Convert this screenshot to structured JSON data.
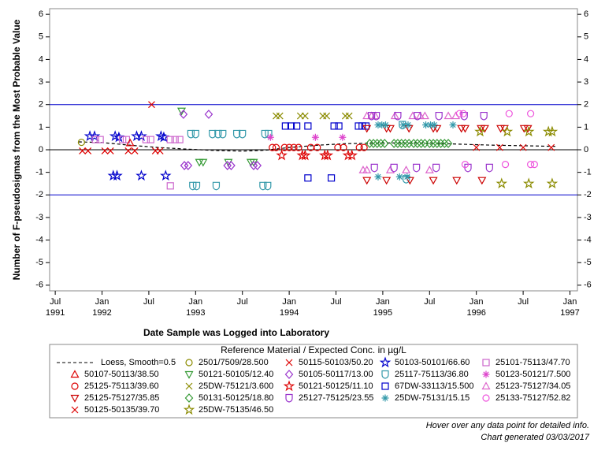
{
  "chart_data": {
    "type": "scatter",
    "x_label": "Date Sample was Logged into Laboratory",
    "y_label": "Number of F-pseudosigmas from the Most Probable Value",
    "xlim": [
      1991.44,
      1997.08
    ],
    "ylim": [
      -6.25,
      6.25
    ],
    "xticks": [
      {
        "value": 1991.5,
        "label": "Jul\n1991"
      },
      {
        "value": 1992,
        "label": "Jan\n1992"
      },
      {
        "value": 1992.5,
        "label": "Jul"
      },
      {
        "value": 1993,
        "label": "Jan\n1993"
      },
      {
        "value": 1993.5,
        "label": "Jul"
      },
      {
        "value": 1994,
        "label": "Jan\n1994"
      },
      {
        "value": 1994.5,
        "label": "Jul"
      },
      {
        "value": 1995,
        "label": "Jan\n1995"
      },
      {
        "value": 1995.5,
        "label": "Jul"
      },
      {
        "value": 1996,
        "label": "Jan\n1996"
      },
      {
        "value": 1996.5,
        "label": "Jul"
      },
      {
        "value": 1997,
        "label": "Jan\n1997"
      }
    ],
    "yticks": [
      -6,
      -5,
      -4,
      -3,
      -2,
      -1,
      0,
      1,
      2,
      3,
      4,
      5,
      6
    ],
    "reference_lines": [
      {
        "value": 2,
        "color": "#0000cc"
      },
      {
        "value": 0,
        "color": "#000000"
      },
      {
        "value": -2,
        "color": "#0000cc"
      }
    ],
    "legend_title": "Reference Material / Expected Conc. in µg/L",
    "loess": {
      "name": "Loess, Smooth=0.5",
      "color": "#000000",
      "x": [
        1991.75,
        1992.0,
        1992.3,
        1992.6,
        1992.9,
        1993.2,
        1993.5,
        1993.75,
        1994.0,
        1994.3,
        1994.6,
        1995.0,
        1995.4,
        1995.8,
        1996.2,
        1996.6,
        1996.85
      ],
      "values": [
        0.35,
        0.32,
        0.2,
        0.1,
        0.03,
        -0.03,
        -0.06,
        -0.02,
        0.1,
        0.2,
        0.27,
        0.3,
        0.3,
        0.25,
        0.2,
        0.17,
        0.15
      ]
    },
    "series": [
      {
        "name": "2501/7509/28.500",
        "marker": "circle",
        "color": "#8b8b00",
        "x": [
          1991.78
        ],
        "values": [
          0.33
        ]
      },
      {
        "name": "50115-50103/50.20",
        "marker": "x",
        "color": "#dd0000",
        "x": [
          1991.79,
          1991.85,
          1992.03,
          1992.09,
          1992.28,
          1992.35,
          1992.53,
          1992.57,
          1992.62
        ],
        "values": [
          -0.05,
          -0.05,
          -0.05,
          -0.05,
          -0.05,
          -0.05,
          2.0,
          -0.05,
          -0.05
        ]
      },
      {
        "name": "50103-50101/66.60",
        "marker": "star",
        "color": "#0000cc",
        "x": [
          1991.87,
          1991.92,
          1992.14,
          1992.18,
          1992.37,
          1992.42,
          1992.63,
          1992.66,
          1992.12,
          1992.16,
          1992.42,
          1992.68
        ],
        "values": [
          0.6,
          0.6,
          0.6,
          0.55,
          0.6,
          0.6,
          0.6,
          0.55,
          -1.15,
          -1.15,
          -1.15,
          -1.15
        ]
      },
      {
        "name": "25101-75113/47.70",
        "marker": "square",
        "color": "#cc66cc",
        "x": [
          1991.93,
          1991.98,
          1992.22,
          1992.26,
          1992.47,
          1992.52,
          1992.73,
          1992.78,
          1992.83,
          1992.73
        ],
        "values": [
          0.45,
          0.45,
          0.45,
          0.45,
          0.45,
          0.45,
          0.45,
          0.45,
          0.45,
          -1.6
        ]
      },
      {
        "name": "50107-50113/38.50",
        "marker": "triangle",
        "color": "#dd0000",
        "x": [
          1992.3
        ],
        "values": [
          0.3
        ]
      },
      {
        "name": "50121-50105/12.40",
        "marker": "triangle-down",
        "color": "#339933",
        "x": [
          1992.85,
          1993.04,
          1993.08,
          1993.35,
          1993.59,
          1993.62
        ],
        "values": [
          1.72,
          -0.55,
          -0.55,
          -0.55,
          -0.55,
          -0.55
        ]
      },
      {
        "name": "50105-50117/13.00",
        "marker": "diamond",
        "color": "#9933cc",
        "x": [
          1992.87,
          1993.14,
          1992.88,
          1992.92,
          1993.34,
          1993.38,
          1993.62,
          1993.66
        ],
        "values": [
          1.57,
          1.57,
          -0.7,
          -0.7,
          -0.7,
          -0.7,
          -0.7,
          -0.7
        ]
      },
      {
        "name": "25117-75113/36.80",
        "marker": "shield",
        "color": "#3399aa",
        "x": [
          1992.95,
          1993.0,
          1993.18,
          1993.24,
          1993.29,
          1993.44,
          1993.5,
          1993.74,
          1993.78,
          1992.97,
          1993.01,
          1993.22,
          1993.72,
          1993.77,
          1995.21,
          1995.25
        ],
        "values": [
          0.7,
          0.7,
          0.7,
          0.7,
          0.7,
          0.7,
          0.7,
          0.7,
          0.7,
          -1.6,
          -1.6,
          -1.6,
          -1.6,
          -1.6,
          1.1,
          -1.3
        ]
      },
      {
        "name": "50123-50121/7.500",
        "marker": "asterisk",
        "color": "#dd44cc",
        "x": [
          1993.8,
          1994.28,
          1994.57
        ],
        "values": [
          0.55,
          0.55,
          0.55
        ]
      },
      {
        "name": "25125-75113/39.60",
        "marker": "circle",
        "color": "#dd0000",
        "x": [
          1993.82,
          1993.86,
          1993.95,
          1994.0,
          1994.05,
          1994.1,
          1994.23,
          1994.3,
          1994.52,
          1994.58,
          1994.75,
          1994.8
        ],
        "values": [
          0.1,
          0.1,
          0.1,
          0.1,
          0.1,
          0.1,
          0.1,
          0.1,
          0.1,
          0.1,
          0.1,
          0.1
        ]
      },
      {
        "name": "25DW-75121/3.600",
        "marker": "x",
        "color": "#8b8b00",
        "x": [
          1993.86,
          1993.9,
          1994.12,
          1994.17,
          1994.36,
          1994.4,
          1994.6,
          1994.64
        ],
        "values": [
          1.5,
          1.5,
          1.5,
          1.5,
          1.5,
          1.5,
          1.5,
          1.5
        ]
      },
      {
        "name": "50121-50125/11.10",
        "marker": "star",
        "color": "#dd0000",
        "x": [
          1993.92,
          1994.14,
          1994.17,
          1994.38,
          1994.41,
          1994.63,
          1994.67
        ],
        "values": [
          -0.25,
          -0.25,
          -0.25,
          -0.25,
          -0.25,
          -0.25,
          -0.25
        ]
      },
      {
        "name": "67DW-33113/15.500",
        "marker": "square",
        "color": "#0000cc",
        "x": [
          1993.96,
          1994.02,
          1994.08,
          1994.2,
          1994.48,
          1994.53,
          1994.74,
          1994.78,
          1994.82,
          1994.2,
          1994.45
        ],
        "values": [
          1.05,
          1.05,
          1.05,
          1.05,
          1.05,
          1.05,
          1.05,
          1.05,
          1.05,
          -1.25,
          -1.25
        ]
      },
      {
        "name": "25123-75127/34.05",
        "marker": "triangle",
        "color": "#dd66cc",
        "x": [
          1994.83,
          1994.88,
          1994.92,
          1994.79,
          1994.83,
          1995.13,
          1995.32,
          1995.4,
          1995.45,
          1995.08,
          1995.25,
          1995.5,
          1995.7,
          1995.78
        ],
        "values": [
          1.5,
          1.5,
          1.5,
          -0.9,
          -0.9,
          1.5,
          1.5,
          1.5,
          1.5,
          -0.9,
          -0.9,
          -0.9,
          1.5,
          1.5
        ]
      },
      {
        "name": "25125-75127/35.85",
        "marker": "triangle-down",
        "color": "#cc0000",
        "x": [
          1994.83,
          1995.04,
          1995.08,
          1995.28,
          1995.54,
          1995.58,
          1995.84,
          1995.88,
          1996.05,
          1996.09,
          1996.26,
          1996.3,
          1996.51,
          1996.55,
          1994.83,
          1995.04,
          1995.29,
          1995.54,
          1995.79,
          1996.06
        ],
        "values": [
          0.95,
          0.95,
          0.95,
          0.95,
          0.95,
          0.95,
          0.95,
          0.95,
          0.95,
          0.95,
          0.95,
          0.95,
          0.95,
          0.95,
          -1.35,
          -1.35,
          -1.35,
          -1.35,
          -1.35,
          -1.35
        ]
      },
      {
        "name": "50131-50125/18.80",
        "marker": "diamond",
        "color": "#339933",
        "x": [
          1994.86,
          1994.9,
          1994.94,
          1994.98,
          1995.02,
          1995.12,
          1995.16,
          1995.2,
          1995.24,
          1995.28,
          1995.33,
          1995.37,
          1995.41,
          1995.45,
          1995.5,
          1995.54,
          1995.58,
          1995.62,
          1995.66,
          1995.7
        ],
        "values": [
          0.28,
          0.28,
          0.28,
          0.28,
          0.28,
          0.28,
          0.28,
          0.28,
          0.28,
          0.28,
          0.28,
          0.28,
          0.28,
          0.28,
          0.28,
          0.28,
          0.28,
          0.28,
          0.28,
          0.28
        ]
      },
      {
        "name": "25127-75125/23.55",
        "marker": "shield",
        "color": "#9933cc",
        "x": [
          1994.88,
          1994.93,
          1995.16,
          1995.37,
          1995.6,
          1995.87,
          1996.08,
          1994.91,
          1995.12,
          1995.36,
          1995.57,
          1995.91,
          1996.14
        ],
        "values": [
          1.5,
          1.5,
          1.5,
          1.5,
          1.5,
          1.5,
          1.5,
          -0.8,
          -0.8,
          -0.8,
          -0.8,
          -0.8,
          -0.8
        ]
      },
      {
        "name": "25DW-75131/15.15",
        "marker": "asterisk",
        "color": "#3399aa",
        "x": [
          1994.95,
          1994.99,
          1995.03,
          1995.22,
          1995.27,
          1995.46,
          1995.51,
          1995.55,
          1995.75,
          1994.95,
          1995.18,
          1995.26
        ],
        "values": [
          1.1,
          1.1,
          1.1,
          1.1,
          1.1,
          1.1,
          1.1,
          1.1,
          1.1,
          -1.2,
          -1.2,
          -1.2
        ]
      },
      {
        "name": "25133-75127/52.82",
        "marker": "circle",
        "color": "#ee55dd",
        "x": [
          1995.82,
          1995.86,
          1996.35,
          1996.58,
          1995.88,
          1996.31,
          1996.58,
          1996.62
        ],
        "values": [
          1.6,
          1.6,
          1.6,
          1.6,
          -0.65,
          -0.65,
          -0.65,
          -0.65
        ]
      },
      {
        "name": "50125-50135/39.70",
        "marker": "x",
        "color": "#dd0000",
        "x": [
          1996.0,
          1996.25,
          1996.5,
          1996.8
        ],
        "values": [
          0.1,
          0.1,
          0.1,
          0.1
        ]
      },
      {
        "name": "25DW-75135/46.50",
        "marker": "star",
        "color": "#8b8b00",
        "x": [
          1996.04,
          1996.33,
          1996.56,
          1996.77,
          1996.81,
          1996.27,
          1996.56,
          1996.81
        ],
        "values": [
          0.8,
          0.8,
          0.8,
          0.8,
          0.8,
          -1.5,
          -1.5,
          -1.5
        ]
      }
    ],
    "notes": [
      "Hover over any data point for detailed info.",
      "Chart generated 03/03/2017"
    ]
  }
}
